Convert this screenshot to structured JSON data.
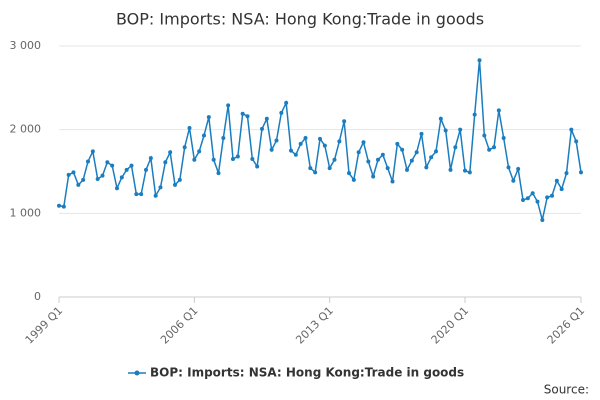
{
  "chart_data": {
    "type": "line",
    "title": "BOP: Imports: NSA: Hong Kong:Trade in goods",
    "source": "Source:",
    "categories": [
      "1999 Q1",
      null,
      null,
      null,
      null,
      null,
      null,
      null,
      null,
      null,
      null,
      null,
      null,
      null,
      null,
      null,
      null,
      null,
      null,
      null,
      null,
      null,
      null,
      null,
      null,
      null,
      null,
      null,
      "2006 Q1",
      null,
      null,
      null,
      null,
      null,
      null,
      null,
      null,
      null,
      null,
      null,
      null,
      null,
      null,
      null,
      null,
      null,
      null,
      null,
      null,
      null,
      null,
      null,
      null,
      null,
      null,
      null,
      "2013 Q1",
      null,
      null,
      null,
      null,
      null,
      null,
      null,
      null,
      null,
      null,
      null,
      null,
      null,
      null,
      null,
      null,
      null,
      null,
      null,
      null,
      null,
      null,
      null,
      null,
      null,
      null,
      null,
      "2020 Q1",
      null,
      null,
      null,
      null,
      null,
      null,
      null,
      null,
      null,
      null,
      null,
      null,
      null,
      null,
      null,
      null,
      null,
      null,
      null,
      null,
      null,
      null,
      null,
      "2026 Q1"
    ],
    "series": [
      {
        "name": "BOP: Imports: NSA: Hong Kong:Trade in goods",
        "color": "#1a7dbf",
        "values": [
          1090,
          1080,
          1460,
          1490,
          1340,
          1400,
          1620,
          1740,
          1410,
          1450,
          1610,
          1570,
          1300,
          1430,
          1520,
          1570,
          1230,
          1230,
          1520,
          1660,
          1210,
          1310,
          1610,
          1730,
          1340,
          1400,
          1790,
          2020,
          1640,
          1740,
          1930,
          2150,
          1640,
          1480,
          1900,
          2290,
          1650,
          1680,
          2190,
          2160,
          1650,
          1560,
          2010,
          2130,
          1760,
          1870,
          2200,
          2320,
          1750,
          1700,
          1830,
          1900,
          1540,
          1490,
          1890,
          1810,
          1540,
          1640,
          1860,
          2100,
          1480,
          1400,
          1730,
          1850,
          1620,
          1440,
          1640,
          1700,
          1540,
          1380,
          1830,
          1760,
          1520,
          1630,
          1730,
          1950,
          1550,
          1670,
          1740,
          2130,
          1990,
          1520,
          1790,
          2000,
          1510,
          1490,
          2180,
          2830,
          1930,
          1760,
          1790,
          2230,
          1900,
          1550,
          1390,
          1530,
          1160,
          1180,
          1240,
          1140,
          920,
          1190,
          1210,
          1390,
          1290,
          1480,
          2000,
          1860,
          1490
        ]
      }
    ],
    "ylim": [
      0,
      3000
    ],
    "yticks": [
      0,
      {
        "value": 1000,
        "label": "1 000"
      },
      {
        "value": 2000,
        "label": "2 000"
      },
      {
        "value": 3000,
        "label": "3 000"
      }
    ],
    "grid": true,
    "legend": "bottom"
  }
}
